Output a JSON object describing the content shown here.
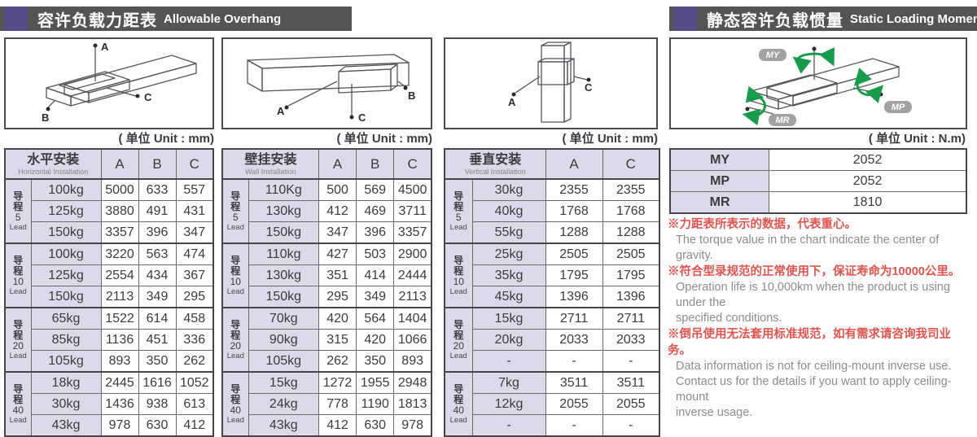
{
  "headers": {
    "left": {
      "cjk": "容许负载力距表",
      "en": "Allowable Overhang"
    },
    "right": {
      "cjk": "静态容许负载惯量",
      "en": "Static Loading Moment"
    }
  },
  "units": {
    "mm": "( 单位 Unit : mm)",
    "nm": "( 单位 Unit : N.m)"
  },
  "colors": {
    "accent_purple": "#554c86",
    "header_gray": "#545457",
    "cell_lavender": "#dbdaeb",
    "note_red": "#e05550",
    "arrow_green": "#189c4c"
  },
  "diagrams": {
    "h": {
      "a": "A",
      "b": "B",
      "c": "C"
    },
    "w": {
      "a": "A",
      "b": "B",
      "c": "C"
    },
    "v": {
      "a": "A",
      "c": "C"
    },
    "m": {
      "my": "MY",
      "mp": "MP",
      "mr": "MR"
    }
  },
  "overhang_tables": [
    {
      "id": "horizontal",
      "title_cjk": "水平安装",
      "title_en": "Horizontal Installation",
      "columns": [
        "A",
        "B",
        "C"
      ],
      "groups": [
        {
          "lead_cjk": "导程",
          "lead_num": "5",
          "lead_en": "Lead",
          "rows": [
            {
              "load": "100kg",
              "values": [
                "5000",
                "633",
                "557"
              ]
            },
            {
              "load": "125kg",
              "values": [
                "3880",
                "491",
                "431"
              ]
            },
            {
              "load": "150kg",
              "values": [
                "3357",
                "396",
                "347"
              ]
            }
          ]
        },
        {
          "lead_cjk": "导程",
          "lead_num": "10",
          "lead_en": "Lead",
          "rows": [
            {
              "load": "100kg",
              "values": [
                "3220",
                "563",
                "474"
              ]
            },
            {
              "load": "125kg",
              "values": [
                "2554",
                "434",
                "367"
              ]
            },
            {
              "load": "150kg",
              "values": [
                "2113",
                "349",
                "295"
              ]
            }
          ]
        },
        {
          "lead_cjk": "导程",
          "lead_num": "20",
          "lead_en": "Lead",
          "rows": [
            {
              "load": "65kg",
              "values": [
                "1522",
                "614",
                "458"
              ]
            },
            {
              "load": "85kg",
              "values": [
                "1136",
                "451",
                "336"
              ]
            },
            {
              "load": "105kg",
              "values": [
                "893",
                "350",
                "262"
              ]
            }
          ]
        },
        {
          "lead_cjk": "导程",
          "lead_num": "40",
          "lead_en": "Lead",
          "rows": [
            {
              "load": "18kg",
              "values": [
                "2445",
                "1616",
                "1052"
              ]
            },
            {
              "load": "30kg",
              "values": [
                "1436",
                "938",
                "613"
              ]
            },
            {
              "load": "43kg",
              "values": [
                "978",
                "630",
                "412"
              ]
            }
          ]
        }
      ]
    },
    {
      "id": "wall",
      "title_cjk": "壁挂安装",
      "title_en": "Wall Installation",
      "columns": [
        "A",
        "B",
        "C"
      ],
      "groups": [
        {
          "lead_cjk": "导程",
          "lead_num": "5",
          "lead_en": "Lead",
          "rows": [
            {
              "load": "110Kg",
              "values": [
                "500",
                "569",
                "4500"
              ]
            },
            {
              "load": "130kg",
              "values": [
                "412",
                "469",
                "3711"
              ]
            },
            {
              "load": "150kg",
              "values": [
                "347",
                "396",
                "3357"
              ]
            }
          ]
        },
        {
          "lead_cjk": "导程",
          "lead_num": "10",
          "lead_en": "Lead",
          "rows": [
            {
              "load": "110kg",
              "values": [
                "427",
                "503",
                "2900"
              ]
            },
            {
              "load": "130kg",
              "values": [
                "351",
                "414",
                "2444"
              ]
            },
            {
              "load": "150kg",
              "values": [
                "295",
                "349",
                "2113"
              ]
            }
          ]
        },
        {
          "lead_cjk": "导程",
          "lead_num": "20",
          "lead_en": "Lead",
          "rows": [
            {
              "load": "70kg",
              "values": [
                "420",
                "564",
                "1404"
              ]
            },
            {
              "load": "90kg",
              "values": [
                "315",
                "420",
                "1066"
              ]
            },
            {
              "load": "105kg",
              "values": [
                "262",
                "350",
                "893"
              ]
            }
          ]
        },
        {
          "lead_cjk": "导程",
          "lead_num": "40",
          "lead_en": "Lead",
          "rows": [
            {
              "load": "15kg",
              "values": [
                "1272",
                "1955",
                "2948"
              ]
            },
            {
              "load": "24kg",
              "values": [
                "778",
                "1190",
                "1813"
              ]
            },
            {
              "load": "43kg",
              "values": [
                "412",
                "630",
                "978"
              ]
            }
          ]
        }
      ]
    },
    {
      "id": "vertical",
      "title_cjk": "垂直安装",
      "title_en": "Vertical Installation",
      "columns": [
        "A",
        "C"
      ],
      "groups": [
        {
          "lead_cjk": "导程",
          "lead_num": "5",
          "lead_en": "Lead",
          "rows": [
            {
              "load": "30kg",
              "values": [
                "2355",
                "2355"
              ]
            },
            {
              "load": "40kg",
              "values": [
                "1768",
                "1768"
              ]
            },
            {
              "load": "55kg",
              "values": [
                "1288",
                "1288"
              ]
            }
          ]
        },
        {
          "lead_cjk": "导程",
          "lead_num": "10",
          "lead_en": "Lead",
          "rows": [
            {
              "load": "25kg",
              "values": [
                "2505",
                "2505"
              ]
            },
            {
              "load": "35kg",
              "values": [
                "1795",
                "1795"
              ]
            },
            {
              "load": "45kg",
              "values": [
                "1396",
                "1396"
              ]
            }
          ]
        },
        {
          "lead_cjk": "导程",
          "lead_num": "20",
          "lead_en": "Lead",
          "rows": [
            {
              "load": "15kg",
              "values": [
                "2711",
                "2711"
              ]
            },
            {
              "load": "20kg",
              "values": [
                "2033",
                "2033"
              ]
            },
            {
              "load": "-",
              "values": [
                "-",
                "-"
              ]
            }
          ]
        },
        {
          "lead_cjk": "导程",
          "lead_num": "40",
          "lead_en": "Lead",
          "rows": [
            {
              "load": "7kg",
              "values": [
                "3511",
                "3511"
              ]
            },
            {
              "load": "12kg",
              "values": [
                "2055",
                "2055"
              ]
            },
            {
              "load": "-",
              "values": [
                "-",
                "-"
              ]
            }
          ]
        }
      ]
    }
  ],
  "moment_table": {
    "rows": [
      {
        "label": "MY",
        "value": "2052"
      },
      {
        "label": "MP",
        "value": "2052"
      },
      {
        "label": "MR",
        "value": "1810"
      }
    ]
  },
  "notes": [
    {
      "cjk": "※力距表所表示的数据，代表重心。",
      "en": [
        "The torque value in the chart indicate the center of gravity."
      ]
    },
    {
      "cjk": "※符合型录规范的正常使用下，保证寿命为10000公里。",
      "en": [
        "Operation life is 10,000km when the product is using under the",
        "specified conditions."
      ]
    },
    {
      "cjk": "※倒吊使用无法套用标准规范，如有需求请咨询我司业务。",
      "en": [
        "Data information is not for ceiling-mount inverse use.",
        "Contact us for the details if you want to apply ceiling-mount",
        "inverse usage."
      ]
    }
  ]
}
